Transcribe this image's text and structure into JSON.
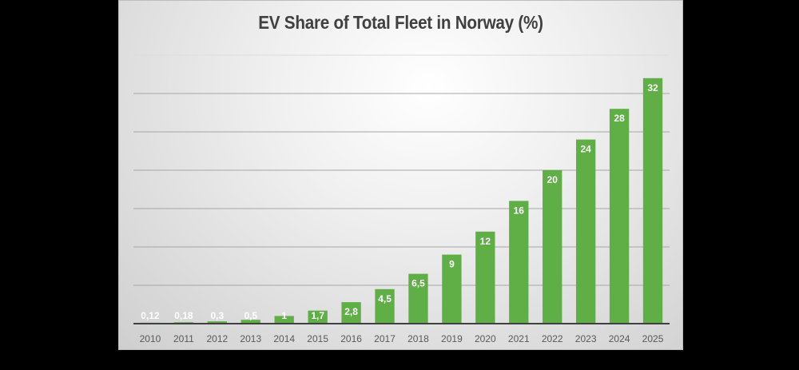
{
  "chart_data": {
    "type": "bar",
    "title": "EV Share of Total Fleet in Norway (%)",
    "xlabel": "",
    "ylabel": "",
    "categories": [
      "2010",
      "2011",
      "2012",
      "2013",
      "2014",
      "2015",
      "2016",
      "2017",
      "2018",
      "2019",
      "2020",
      "2021",
      "2022",
      "2023",
      "2024",
      "2025"
    ],
    "values": [
      0.12,
      0.18,
      0.3,
      0.5,
      1,
      1.7,
      2.8,
      4.5,
      6.5,
      9,
      12,
      16,
      20,
      24,
      28,
      32
    ],
    "data_labels": [
      "0,12",
      "0,18",
      "0,3",
      "0,5",
      "1",
      "1,7",
      "2,8",
      "4,5",
      "6,5",
      "9",
      "12",
      "16",
      "20",
      "24",
      "28",
      "32"
    ],
    "ylim": [
      0,
      35
    ],
    "y_gridlines": [
      5,
      10,
      15,
      20,
      25,
      30,
      35
    ],
    "y_tick_labels_visible": false,
    "grid": true,
    "legend": "none",
    "colors": {
      "bar": "#5fae46",
      "gridline": "#a6a6a6",
      "axis": "#404040",
      "title": "#404040",
      "tick": "#595959",
      "data_label": "#ffffff"
    }
  }
}
